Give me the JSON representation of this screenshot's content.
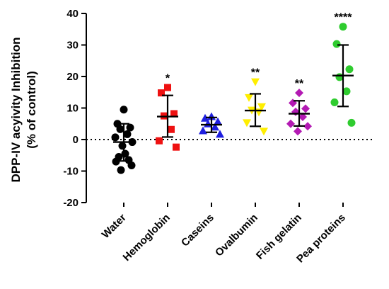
{
  "chart_data": {
    "type": "scatter",
    "title": "",
    "ylabel_line1": "DPP-IV acyivity Inhibition",
    "ylabel_line2": "(% of control)",
    "xlabel": "",
    "ylim": [
      -20,
      40
    ],
    "yticks": [
      -20,
      -10,
      0,
      10,
      20,
      30,
      40
    ],
    "ytick_labels": [
      "-20",
      "-10",
      "0",
      "10",
      "20",
      "30",
      "40"
    ],
    "zero_line": "dotted",
    "grid": false,
    "groups": [
      {
        "label": "Water",
        "color": "#000000",
        "marker": "circle",
        "significance": "",
        "mean": -0.8,
        "sd_low": -6.8,
        "sd_high": 5.0,
        "points": [
          9.5,
          5.0,
          3.8,
          3.3,
          1.7,
          0.7,
          -0.8,
          -2.0,
          -4.5,
          -5.5,
          -6.5,
          -7.0,
          -8.2,
          -9.7
        ]
      },
      {
        "label": "Hemoglobin",
        "color": "#ee1111",
        "marker": "square",
        "significance": "*",
        "mean": 7.3,
        "sd_low": 0.8,
        "sd_high": 14.0,
        "points": [
          16.5,
          14.8,
          8.2,
          7.5,
          3.2,
          -0.4,
          -2.4
        ]
      },
      {
        "label": "Caseins",
        "color": "#1f1fe0",
        "marker": "triangle-up",
        "significance": "",
        "mean": 4.7,
        "sd_low": 2.3,
        "sd_high": 7.0,
        "points": [
          7.3,
          6.8,
          5.7,
          5.0,
          4.0,
          2.8,
          1.7
        ]
      },
      {
        "label": "Ovalbumin",
        "color": "#ffee00",
        "marker": "triangle-down",
        "significance": "**",
        "mean": 9.2,
        "sd_low": 4.2,
        "sd_high": 14.5,
        "points": [
          18.3,
          13.3,
          10.4,
          9.3,
          8.7,
          5.3,
          2.6
        ]
      },
      {
        "label": "Fish gelatin",
        "color": "#b31ab3",
        "marker": "diamond",
        "significance": "**",
        "mean": 8.2,
        "sd_low": 4.3,
        "sd_high": 12.3,
        "points": [
          14.8,
          11.6,
          9.8,
          8.8,
          7.2,
          5.0,
          4.2,
          2.6
        ]
      },
      {
        "label": "Pea proteins",
        "color": "#2fcc2f",
        "marker": "circle",
        "significance": "****",
        "mean": 20.3,
        "sd_low": 10.5,
        "sd_high": 30.0,
        "points": [
          35.8,
          30.3,
          22.3,
          19.8,
          15.3,
          11.8,
          5.3
        ]
      }
    ]
  }
}
